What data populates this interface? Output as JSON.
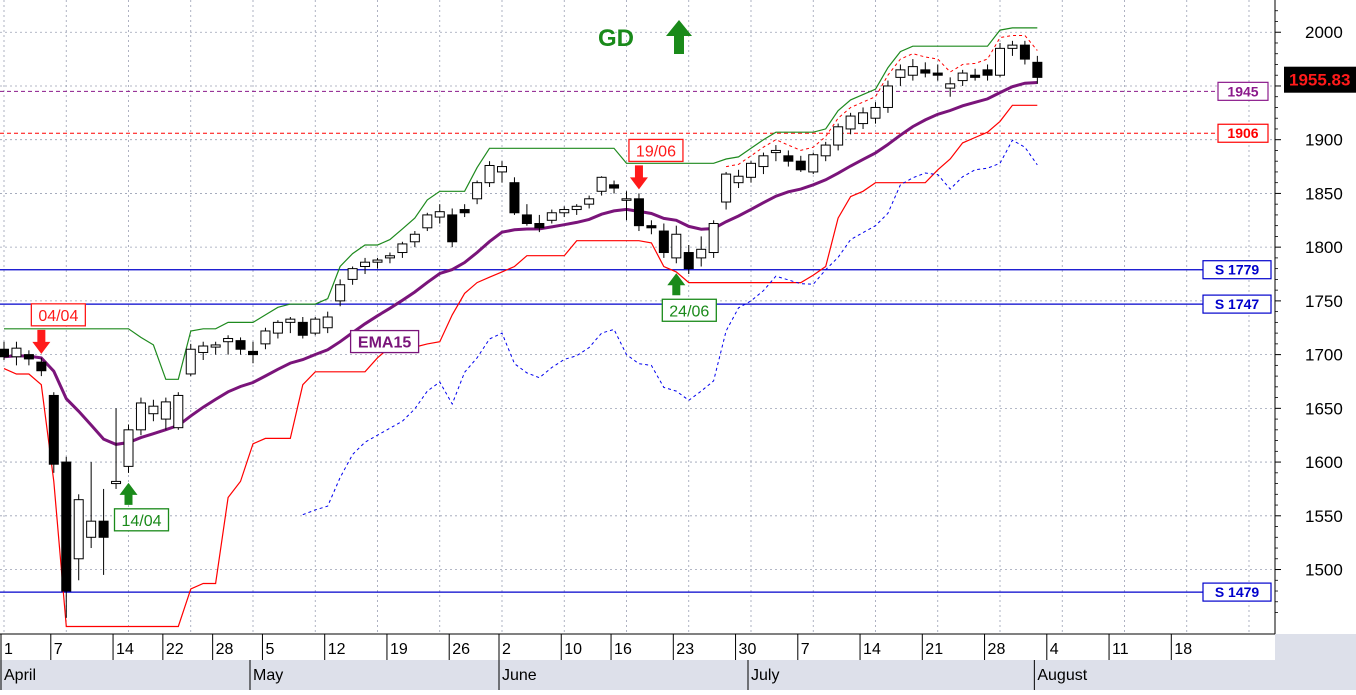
{
  "chart_data": {
    "type": "candlestick",
    "title": "",
    "signal": {
      "text": "GD",
      "color": "#1a8a1a",
      "arrow": "up-arrow-icon"
    },
    "y_axis": {
      "ylim": [
        1440,
        2030
      ],
      "ticks": [
        1500,
        1550,
        1600,
        1650,
        1700,
        1750,
        1800,
        1850,
        1900,
        1950,
        2000
      ],
      "position": "right"
    },
    "x_axis": {
      "day_ticks": [
        {
          "i": 0,
          "label": "1"
        },
        {
          "i": 4,
          "label": "7"
        },
        {
          "i": 9,
          "label": "14"
        },
        {
          "i": 13,
          "label": "22"
        },
        {
          "i": 17,
          "label": "28"
        },
        {
          "i": 21,
          "label": "5"
        },
        {
          "i": 26,
          "label": "12"
        },
        {
          "i": 31,
          "label": "19"
        },
        {
          "i": 36,
          "label": "26"
        },
        {
          "i": 40,
          "label": "2"
        },
        {
          "i": 45,
          "label": "10"
        },
        {
          "i": 49,
          "label": "16"
        },
        {
          "i": 54,
          "label": "23"
        },
        {
          "i": 59,
          "label": "30"
        },
        {
          "i": 64,
          "label": "7"
        },
        {
          "i": 69,
          "label": "14"
        },
        {
          "i": 74,
          "label": "21"
        },
        {
          "i": 79,
          "label": "28"
        },
        {
          "i": 84,
          "label": "4"
        },
        {
          "i": 89,
          "label": "11"
        },
        {
          "i": 94,
          "label": "18"
        }
      ],
      "months": [
        {
          "i": 0,
          "label": "April"
        },
        {
          "i": 20,
          "label": "May"
        },
        {
          "i": 40,
          "label": "June"
        },
        {
          "i": 60,
          "label": "July"
        },
        {
          "i": 83,
          "label": "August"
        }
      ]
    },
    "candles": [
      [
        1705,
        1712,
        1695,
        1698
      ],
      [
        1698,
        1712,
        1690,
        1706
      ],
      [
        1700,
        1704,
        1690,
        1696
      ],
      [
        1693,
        1697,
        1680,
        1685
      ],
      [
        1662,
        1665,
        1590,
        1598
      ],
      [
        1600,
        1605,
        1455,
        1480
      ],
      [
        1510,
        1570,
        1490,
        1565
      ],
      [
        1530,
        1600,
        1520,
        1545
      ],
      [
        1545,
        1575,
        1495,
        1530
      ],
      [
        1580,
        1650,
        1575,
        1582
      ],
      [
        1596,
        1635,
        1590,
        1630
      ],
      [
        1630,
        1660,
        1625,
        1655
      ],
      [
        1645,
        1658,
        1638,
        1652
      ],
      [
        1640,
        1660,
        1630,
        1656
      ],
      [
        1632,
        1665,
        1630,
        1662
      ],
      [
        1682,
        1710,
        1680,
        1705
      ],
      [
        1702,
        1712,
        1695,
        1708
      ],
      [
        1707,
        1712,
        1700,
        1709
      ],
      [
        1712,
        1718,
        1700,
        1715
      ],
      [
        1713,
        1716,
        1700,
        1705
      ],
      [
        1703,
        1712,
        1692,
        1700
      ],
      [
        1710,
        1725,
        1705,
        1722
      ],
      [
        1720,
        1732,
        1715,
        1730
      ],
      [
        1730,
        1735,
        1720,
        1733
      ],
      [
        1730,
        1735,
        1715,
        1718
      ],
      [
        1720,
        1735,
        1718,
        1733
      ],
      [
        1725,
        1740,
        1720,
        1735
      ],
      [
        1750,
        1770,
        1745,
        1765
      ],
      [
        1770,
        1782,
        1765,
        1780
      ],
      [
        1782,
        1790,
        1775,
        1786
      ],
      [
        1786,
        1790,
        1780,
        1788
      ],
      [
        1790,
        1795,
        1785,
        1792
      ],
      [
        1795,
        1805,
        1790,
        1803
      ],
      [
        1805,
        1815,
        1800,
        1812
      ],
      [
        1818,
        1832,
        1815,
        1830
      ],
      [
        1828,
        1840,
        1822,
        1833
      ],
      [
        1830,
        1836,
        1800,
        1805
      ],
      [
        1835,
        1840,
        1828,
        1832
      ],
      [
        1845,
        1862,
        1840,
        1860
      ],
      [
        1860,
        1880,
        1856,
        1876
      ],
      [
        1870,
        1880,
        1860,
        1875
      ],
      [
        1860,
        1865,
        1830,
        1832
      ],
      [
        1830,
        1840,
        1820,
        1822
      ],
      [
        1822,
        1830,
        1814,
        1818
      ],
      [
        1825,
        1835,
        1822,
        1832
      ],
      [
        1832,
        1838,
        1828,
        1835
      ],
      [
        1835,
        1840,
        1830,
        1838
      ],
      [
        1840,
        1848,
        1836,
        1845
      ],
      [
        1852,
        1866,
        1848,
        1865
      ],
      [
        1858,
        1862,
        1850,
        1855
      ],
      [
        1845,
        1852,
        1825,
        1845
      ],
      [
        1845,
        1850,
        1815,
        1820
      ],
      [
        1820,
        1825,
        1812,
        1818
      ],
      [
        1815,
        1822,
        1790,
        1795
      ],
      [
        1790,
        1820,
        1785,
        1812
      ],
      [
        1795,
        1802,
        1775,
        1780
      ],
      [
        1790,
        1810,
        1782,
        1798
      ],
      [
        1795,
        1825,
        1790,
        1822
      ],
      [
        1842,
        1870,
        1835,
        1868
      ],
      [
        1860,
        1872,
        1855,
        1866
      ],
      [
        1865,
        1880,
        1860,
        1878
      ],
      [
        1875,
        1888,
        1868,
        1885
      ],
      [
        1888,
        1895,
        1880,
        1890
      ],
      [
        1885,
        1890,
        1875,
        1880
      ],
      [
        1880,
        1885,
        1870,
        1872
      ],
      [
        1870,
        1888,
        1868,
        1886
      ],
      [
        1885,
        1898,
        1880,
        1895
      ],
      [
        1895,
        1915,
        1890,
        1912
      ],
      [
        1910,
        1925,
        1905,
        1922
      ],
      [
        1915,
        1930,
        1910,
        1925
      ],
      [
        1920,
        1935,
        1915,
        1930
      ],
      [
        1930,
        1955,
        1925,
        1950
      ],
      [
        1958,
        1970,
        1950,
        1965
      ],
      [
        1960,
        1975,
        1955,
        1968
      ],
      [
        1965,
        1972,
        1958,
        1962
      ],
      [
        1962,
        1970,
        1955,
        1960
      ],
      [
        1948,
        1958,
        1940,
        1952
      ],
      [
        1955,
        1965,
        1950,
        1962
      ],
      [
        1960,
        1966,
        1955,
        1958
      ],
      [
        1965,
        1970,
        1955,
        1960
      ],
      [
        1960,
        1990,
        1958,
        1985
      ],
      [
        1985,
        1992,
        1978,
        1988
      ],
      [
        1988,
        1992,
        1970,
        1975
      ],
      [
        1972,
        1978,
        1952,
        1958
      ]
    ],
    "levels": [
      {
        "value": 1779,
        "label": "S 1779",
        "color": "#0000cc"
      },
      {
        "value": 1747,
        "label": "S 1747",
        "color": "#0000cc"
      },
      {
        "value": 1479,
        "label": "S 1479",
        "color": "#0000cc"
      }
    ],
    "dotted_levels": [
      {
        "value": 1945,
        "label": "1945",
        "color": "#8b1a8b"
      },
      {
        "value": 1906,
        "label": "1906",
        "color": "#ff0000"
      }
    ],
    "last_price": {
      "value": 1955.83,
      "label": "1955.83"
    },
    "ema_label": "EMA15",
    "signals": [
      {
        "i": 3,
        "type": "sell",
        "label": "04/04"
      },
      {
        "i": 10,
        "type": "buy",
        "label": "14/04"
      },
      {
        "i": 51,
        "type": "sell",
        "label": "19/06"
      },
      {
        "i": 54,
        "type": "buy",
        "label": "24/06"
      }
    ],
    "colors": {
      "ema": "#7a147a",
      "upper": "#1e8a1e",
      "lower": "#ff0000",
      "blue": "#0000ee",
      "grid": "#9aa0b4",
      "axis_bg": "#dde0ea"
    }
  }
}
